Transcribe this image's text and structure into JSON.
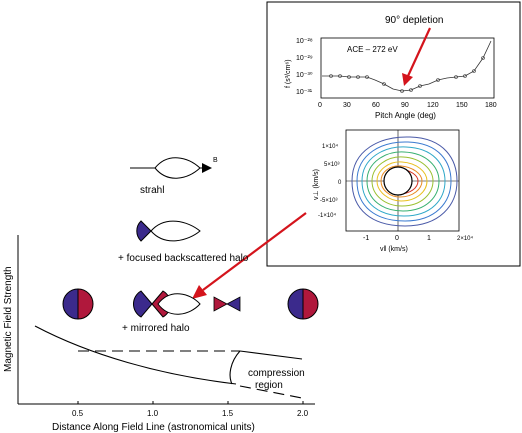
{
  "main_plot": {
    "ylabel": "Magnetic Field Strength",
    "xlabel": "Distance Along Field Line (astronomical units)",
    "xticks": [
      "0.5",
      "1.0",
      "1.5",
      "2.0"
    ]
  },
  "labels": {
    "B": "B",
    "strahl": "strahl",
    "focused_halo": "+ focused backscattered halo",
    "mirrored_halo": "+ mirrored halo",
    "compression_line1": "compression",
    "compression_line2": "region"
  },
  "inset": {
    "annotation": "90° depletion",
    "top_panel": {
      "legend": "ACE – 272 eV",
      "ylabel": "f (s³/cm⁶)",
      "xlabel": "Pitch Angle (deg)",
      "xticks": [
        "0",
        "30",
        "60",
        "90",
        "120",
        "150",
        "180"
      ],
      "yticks": [
        "10⁻²⁸",
        "10⁻²⁹",
        "10⁻³⁰",
        "10⁻³¹"
      ]
    },
    "bottom_panel": {
      "ylabel": "v⊥ (km/s)",
      "xlabel": "v‖ (km/s)",
      "xticks": [
        "-1",
        "0",
        "1",
        "2×10⁴"
      ],
      "yticks": [
        "1×10⁴",
        "5×10³",
        "0",
        "-5×10³",
        "-1×10⁴"
      ]
    }
  },
  "colors": {
    "arrow_red": "#d4141c",
    "purple": "#3b2a8c",
    "crimson": "#b0183c"
  }
}
